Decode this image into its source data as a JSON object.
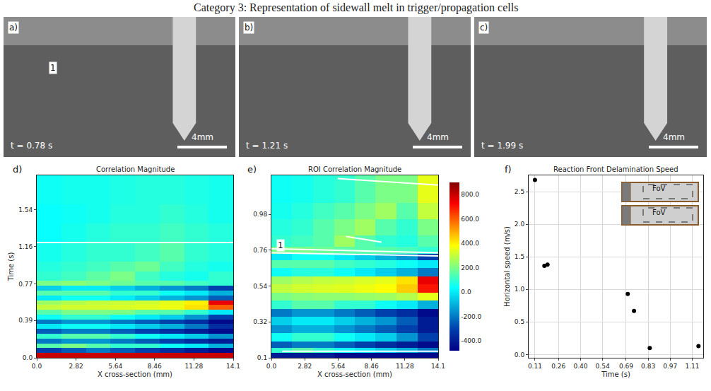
{
  "title": "Category 3: Representation of sidewall melt in trigger/propagation cells",
  "images": [
    {
      "letter": "a)",
      "time": "t = 0.78 s",
      "scale_bar": "4mm",
      "label": "1"
    },
    {
      "letter": "b)",
      "time": "t = 1.21 s",
      "scale_bar": "4mm"
    },
    {
      "letter": "c)",
      "time": "t = 1.99 s",
      "scale_bar": "4mm"
    }
  ],
  "chart_data": [
    {
      "type": "heatmap",
      "letter": "d)",
      "title": "Correlation Magnitude",
      "x_label": "X cross-section (mm)",
      "y_label": "Time (s)",
      "xlim": [
        0,
        14.1
      ],
      "ylim": [
        0,
        1.9
      ],
      "xticks": [
        {
          "value": 0,
          "label": "0.0"
        },
        2.82,
        5.64,
        8.46,
        11.28,
        14.1
      ],
      "yticks": [
        {
          "value": 0,
          "label": "0.0"
        },
        0.39,
        0.77,
        1.16,
        1.54
      ],
      "zlim": [
        -480,
        900
      ],
      "x_edges": [
        0,
        1.76,
        3.53,
        5.29,
        7.05,
        8.81,
        10.58,
        12.34,
        14.1
      ],
      "y_edges": [
        0,
        0.05,
        0.1,
        0.15,
        0.2,
        0.25,
        0.3,
        0.35,
        0.4,
        0.45,
        0.5,
        0.55,
        0.6,
        0.65,
        0.7,
        0.75,
        0.8,
        0.9,
        1.0,
        1.2,
        1.4,
        1.6,
        1.9
      ],
      "z": [
        [
          800,
          800,
          800,
          800,
          800,
          800,
          800,
          800
        ],
        [
          -300,
          -250,
          -200,
          -250,
          -300,
          -350,
          -400,
          -450
        ],
        [
          150,
          200,
          150,
          100,
          100,
          50,
          0,
          -100
        ],
        [
          -200,
          -150,
          -150,
          -200,
          -250,
          -300,
          -350,
          -400
        ],
        [
          100,
          150,
          150,
          100,
          50,
          0,
          -50,
          -150
        ],
        [
          -250,
          -200,
          -200,
          -250,
          -300,
          -350,
          -400,
          -450
        ],
        [
          0,
          50,
          50,
          0,
          -50,
          -100,
          -200,
          -350
        ],
        [
          -200,
          -150,
          -150,
          -200,
          -250,
          -300,
          -350,
          -450
        ],
        [
          50,
          100,
          100,
          50,
          0,
          -50,
          -150,
          -300
        ],
        [
          150,
          200,
          200,
          200,
          150,
          150,
          100,
          0
        ],
        [
          300,
          320,
          320,
          330,
          340,
          360,
          420,
          600
        ],
        [
          250,
          280,
          300,
          310,
          320,
          350,
          400,
          750
        ],
        [
          0,
          50,
          50,
          0,
          -50,
          -100,
          -150,
          -250
        ],
        [
          150,
          150,
          150,
          100,
          100,
          50,
          0,
          -100
        ],
        [
          -50,
          0,
          0,
          -50,
          -100,
          -150,
          -200,
          -300
        ],
        [
          200,
          220,
          200,
          180,
          150,
          150,
          120,
          100
        ],
        [
          100,
          120,
          160,
          200,
          120,
          80,
          60,
          100
        ],
        [
          80,
          100,
          120,
          150,
          180,
          120,
          80,
          60
        ],
        [
          60,
          80,
          100,
          100,
          120,
          150,
          100,
          80
        ],
        [
          40,
          60,
          80,
          100,
          100,
          120,
          100,
          80
        ],
        [
          40,
          50,
          60,
          80,
          80,
          100,
          80,
          60
        ],
        [
          50,
          60,
          60,
          70,
          80,
          80,
          70,
          60
        ]
      ],
      "lines": [
        {
          "x": [
            0,
            14.1
          ],
          "y": [
            1.2,
            1.2
          ]
        }
      ]
    },
    {
      "type": "heatmap",
      "letter": "e)",
      "title": "ROI Correlation Magnitude",
      "x_label": "X cross-section (mm)",
      "xlim": [
        0,
        14.1
      ],
      "ylim": [
        0.1,
        1.22
      ],
      "xticks": [
        {
          "value": 0,
          "label": "0.0"
        },
        2.82,
        5.64,
        8.46,
        11.28,
        14.1
      ],
      "yticks": [
        0.1,
        0.32,
        0.54,
        0.76,
        0.98
      ],
      "zlim": [
        -480,
        900
      ],
      "colorbar_ticks": [
        {
          "value": -400,
          "label": "-400.0"
        },
        {
          "value": -200,
          "label": "-200.0"
        },
        {
          "value": 0,
          "label": "0.0"
        },
        {
          "value": 200,
          "label": "200.0"
        },
        {
          "value": 400,
          "label": "400.0"
        },
        {
          "value": 600,
          "label": "600.0"
        },
        {
          "value": 800,
          "label": "800.0"
        }
      ],
      "x_edges": [
        0,
        1.76,
        3.53,
        5.29,
        7.05,
        8.81,
        10.58,
        12.34,
        14.1
      ],
      "y_edges": [
        0.1,
        0.13,
        0.16,
        0.2,
        0.25,
        0.3,
        0.35,
        0.4,
        0.45,
        0.5,
        0.55,
        0.6,
        0.65,
        0.7,
        0.74,
        0.78,
        0.85,
        0.95,
        1.05,
        1.22
      ],
      "z": [
        [
          -400,
          -400,
          -400,
          -450,
          -450,
          -450,
          -450,
          -450
        ],
        [
          100,
          150,
          100,
          50,
          0,
          -50,
          -100,
          -200
        ],
        [
          -250,
          -200,
          -200,
          -250,
          -300,
          -350,
          -400,
          -450
        ],
        [
          50,
          100,
          100,
          50,
          0,
          -50,
          -150,
          -300
        ],
        [
          -150,
          -100,
          -100,
          -150,
          -200,
          -250,
          -300,
          -400
        ],
        [
          -50,
          0,
          0,
          -50,
          -100,
          -150,
          -250,
          -400
        ],
        [
          -200,
          -150,
          -150,
          -200,
          -250,
          -300,
          -350,
          -450
        ],
        [
          100,
          150,
          150,
          100,
          100,
          50,
          0,
          -100
        ],
        [
          200,
          220,
          230,
          230,
          240,
          250,
          280,
          350
        ],
        [
          300,
          320,
          330,
          340,
          360,
          380,
          450,
          700
        ],
        [
          250,
          280,
          300,
          310,
          330,
          350,
          420,
          750
        ],
        [
          50,
          80,
          80,
          50,
          0,
          -50,
          -100,
          -200
        ],
        [
          150,
          150,
          150,
          120,
          100,
          80,
          50,
          0
        ],
        [
          0,
          50,
          50,
          0,
          -50,
          -100,
          -150,
          -300
        ],
        [
          200,
          200,
          180,
          160,
          150,
          150,
          130,
          100
        ],
        [
          100,
          120,
          150,
          250,
          150,
          100,
          80,
          150
        ],
        [
          80,
          100,
          150,
          200,
          250,
          150,
          100,
          200
        ],
        [
          60,
          80,
          120,
          150,
          200,
          250,
          150,
          300
        ],
        [
          50,
          60,
          80,
          100,
          150,
          200,
          200,
          350
        ]
      ],
      "lines": [
        {
          "x": [
            0.9,
            14.1
          ],
          "y": [
            0.14,
            0.14
          ]
        },
        {
          "x": [
            0,
            14.1
          ],
          "y": [
            0.77,
            0.745
          ]
        },
        {
          "x": [
            0,
            14.1
          ],
          "y": [
            0.745,
            0.725
          ]
        },
        {
          "x": [
            6.3,
            9.3
          ],
          "y": [
            0.845,
            0.81
          ]
        },
        {
          "x": [
            5.6,
            14.1
          ],
          "y": [
            1.2,
            1.16
          ]
        }
      ],
      "label": {
        "text": "1",
        "x": 0.8,
        "y": 0.79
      }
    },
    {
      "type": "scatter",
      "letter": "f)",
      "title": "Reaction Front Delamination Speed",
      "x_label": "Time (s)",
      "y_label": "Horizontal speed (m/s)",
      "xlim": [
        0.07,
        1.18
      ],
      "ylim": [
        -0.05,
        2.75
      ],
      "xticks": [
        0.11,
        0.26,
        {
          "value": 0.4,
          "label": "0.40"
        },
        0.54,
        0.69,
        0.83,
        0.97,
        1.11
      ],
      "yticks": [
        {
          "value": 0,
          "label": "0.0"
        },
        0.5,
        {
          "value": 1,
          "label": "1.0"
        },
        1.5,
        {
          "value": 2,
          "label": "2.0"
        },
        2.5
      ],
      "x": [
        0.11,
        0.17,
        0.19,
        0.7,
        0.74,
        0.84,
        1.15
      ],
      "values": [
        2.68,
        1.36,
        1.38,
        0.93,
        0.67,
        0.1,
        0.13
      ],
      "color": "#000000",
      "marker": "circle",
      "grid": true,
      "inset_label": "FoV"
    }
  ]
}
